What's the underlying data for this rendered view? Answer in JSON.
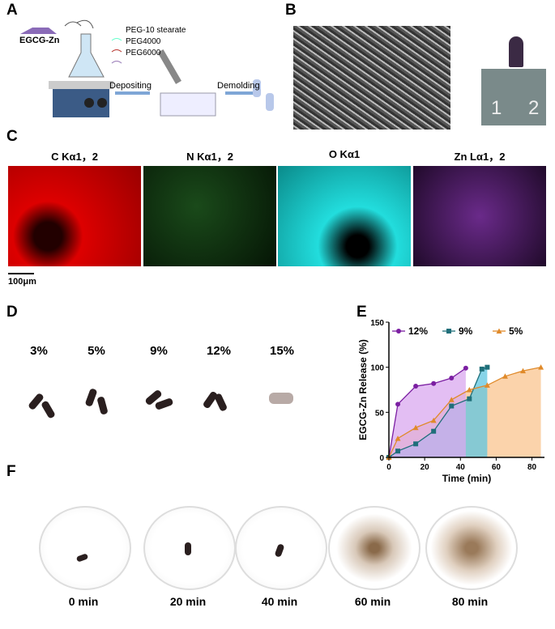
{
  "panel_labels": [
    "A",
    "B",
    "C",
    "D",
    "E",
    "F"
  ],
  "panel_a": {
    "compound": "EGCG-Zn",
    "legend": [
      "PEG-10 stearate",
      "PEG4000",
      "PEG6000"
    ],
    "steps": [
      "Depositing",
      "Demolding"
    ]
  },
  "panel_b": {
    "ruler_labels": [
      "1",
      "2"
    ]
  },
  "panel_c": {
    "maps": [
      "C Kα1，2",
      "N Kα1，2",
      "O Kα1",
      "Zn Lα1，2"
    ],
    "scale_bar": "100μm"
  },
  "panel_d": {
    "labels": [
      "3%",
      "5%",
      "9%",
      "12%",
      "15%"
    ]
  },
  "chart_data": {
    "type": "line",
    "x_label": "Time (min)",
    "y_label": "EGCG-Zn Release (%)",
    "xlim": [
      0,
      87
    ],
    "ylim": [
      0,
      150
    ],
    "xticks": [
      0,
      20,
      40,
      60,
      80
    ],
    "yticks": [
      0,
      50,
      100,
      150
    ],
    "series": [
      {
        "name": "12%",
        "color": "#7b1fa2",
        "fill_color": "#d9a8ef",
        "marker": "circle",
        "x": [
          0,
          5,
          15,
          25,
          35,
          43
        ],
        "values": [
          0,
          59,
          79,
          82,
          88,
          99
        ]
      },
      {
        "name": "9%",
        "color": "#1f6f7a",
        "fill_color": "#5fc6e0",
        "marker": "square",
        "x": [
          0,
          5,
          15,
          25,
          35,
          45,
          52,
          55
        ],
        "values": [
          0,
          7,
          15,
          29,
          57,
          65,
          98,
          100
        ]
      },
      {
        "name": "5%",
        "color": "#e08a2a",
        "fill_color": "#f9c48f",
        "marker": "triangle",
        "x": [
          0,
          5,
          15,
          25,
          35,
          45,
          55,
          65,
          75,
          85
        ],
        "values": [
          0,
          21,
          33,
          41,
          64,
          75,
          80,
          90,
          96,
          100
        ]
      }
    ]
  },
  "panel_f": {
    "labels": [
      "0 min",
      "20 min",
      "40 min",
      "60 min",
      "80 min"
    ]
  }
}
